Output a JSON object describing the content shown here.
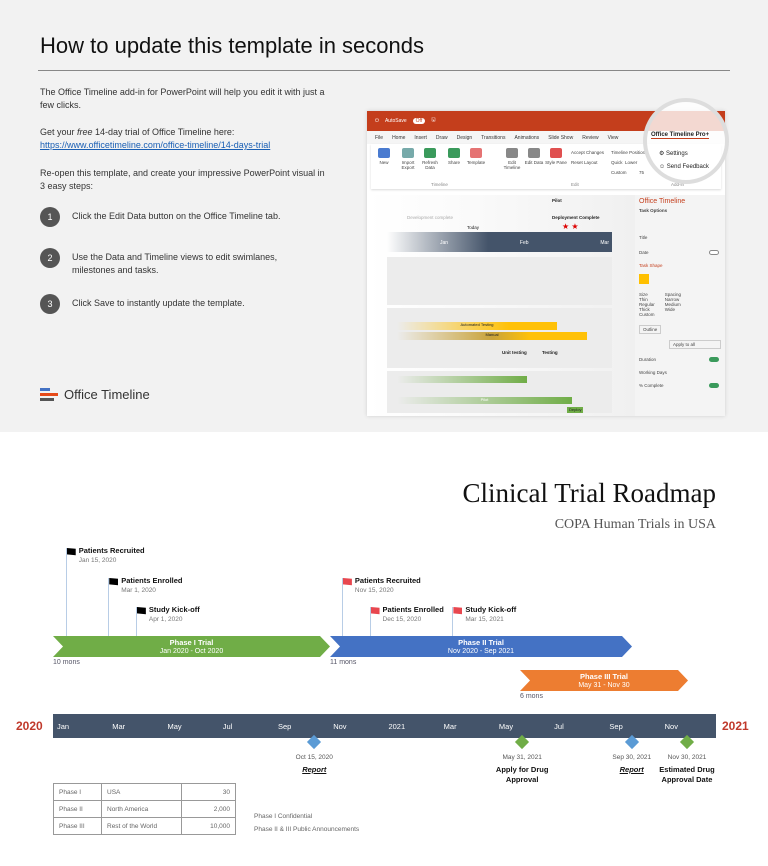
{
  "instructions": {
    "title": "How to update this template in seconds",
    "intro": "The Office Timeline add-in for PowerPoint will help you edit it with just a few clicks.",
    "trial_prefix": "Get your ",
    "trial_free": "free",
    "trial_suffix": " 14-day trial of Office Timeline here:",
    "trial_link": "https://www.officetimeline.com/office-timeline/14-days-trial",
    "reopen": "Re-open this template, and create your impressive PowerPoint visual in 3 easy steps:",
    "steps": [
      {
        "num": "1",
        "text": "Click the Edit Data button on the Office Timeline tab."
      },
      {
        "num": "2",
        "text": "Use the Data and Timeline views to edit swimlanes, milestones and tasks."
      },
      {
        "num": "3",
        "text": "Click Save to instantly update the template."
      }
    ],
    "logo": "Office Timeline"
  },
  "ppt": {
    "autosave": "AutoSave",
    "off": "Off",
    "menus": [
      "File",
      "Home",
      "Insert",
      "Draw",
      "Design",
      "Transitions",
      "Animations",
      "Slide Show",
      "Review",
      "View"
    ],
    "active_tab": "Office Timeline Pro+",
    "buttons": [
      "New",
      "Import Export",
      "Refresh Data",
      "Share",
      "Template",
      "Edit Timeline",
      "Edit Data",
      "Style Pane"
    ],
    "accept": "Accept Changes",
    "reset": "Reset Layout",
    "position": "Timeline Position",
    "quick": "Quick",
    "lower": "Lower",
    "custom": "Custom",
    "custom_val": "75",
    "settings": "Settings",
    "feedback": "Send Feedback",
    "help": "Help",
    "groups": [
      "Timeline",
      "Edit",
      "Add-in"
    ],
    "panel_title": "Office Timeline",
    "task_options": "Task Options",
    "p_title": "Title",
    "p_date": "Date",
    "task_shape": "Task Shape",
    "size": "Size",
    "sizes": [
      "Thin",
      "Regular",
      "Thick",
      "Custom"
    ],
    "spacing": "Spacing",
    "spacings": [
      "Narrow",
      "Medium",
      "Wide"
    ],
    "outline": "Outline",
    "apply": "Apply to all",
    "duration": "Duration",
    "working": "Working Days",
    "complete": "% Complete",
    "slide": {
      "pilot": "Pilot",
      "deploy": "Deployment Complete",
      "dev": "Development complete",
      "today": "Today",
      "months": [
        "Jan",
        "Feb",
        "Mar"
      ],
      "tasks": [
        "Automated Testing",
        "Manual",
        "Unit testing",
        "Testing",
        "Pilot",
        "Deploy"
      ]
    }
  },
  "chart": {
    "title": "Clinical Trial Roadmap",
    "subtitle": "COPA Human Trials in USA",
    "start_year": "2020",
    "end_year": "2021",
    "months": [
      "Jan",
      "Mar",
      "May",
      "Jul",
      "Sep",
      "Nov",
      "2021",
      "Mar",
      "May",
      "Jul",
      "Sep",
      "Nov"
    ],
    "phases": [
      {
        "name": "Phase I Trial",
        "range": "Jan 2020 - Oct 2020",
        "duration": "10 mons",
        "color": "#70ad47"
      },
      {
        "name": "Phase II Trial",
        "range": "Nov 2020 - Sep 2021",
        "duration": "11 mons",
        "color": "#4472c4"
      },
      {
        "name": "Phase III Trial",
        "range": "May 31 - Nov 30",
        "duration": "6 mons",
        "color": "#ed7d31"
      }
    ],
    "flags": [
      {
        "label": "Patients Recruited",
        "date": "Jan 15, 2020",
        "color": "#000000"
      },
      {
        "label": "Patients Enrolled",
        "date": "Mar 1, 2020",
        "color": "#000000"
      },
      {
        "label": "Study Kick-off",
        "date": "Apr 1, 2020",
        "color": "#000000"
      },
      {
        "label": "Patients Recruited",
        "date": "Nov 15, 2020",
        "color": "#e8474f"
      },
      {
        "label": "Patients Enrolled",
        "date": "Dec 15, 2020",
        "color": "#e8474f"
      },
      {
        "label": "Study Kick-off",
        "date": "Mar 15, 2021",
        "color": "#e8474f"
      }
    ],
    "diamonds": [
      {
        "date": "Oct 15, 2020",
        "label": "Report",
        "color": "#5b9bd5",
        "underline": true
      },
      {
        "date": "May 31, 2021",
        "label": "Apply for Drug Approval",
        "color": "#70ad47",
        "underline": false
      },
      {
        "date": "Sep 30, 2021",
        "label": "Report",
        "color": "#5b9bd5",
        "underline": true
      },
      {
        "date": "Nov 30, 2021",
        "label": "Estimated Drug Approval Date",
        "color": "#70ad47",
        "underline": false
      }
    ],
    "table": [
      [
        "Phase I",
        "USA",
        "30"
      ],
      [
        "Phase II",
        "North America",
        "2,000"
      ],
      [
        "Phase III",
        "Rest of the World",
        "10,000"
      ]
    ],
    "notes": [
      "Phase I Confidential",
      "Phase II & III Public Announcements"
    ]
  }
}
